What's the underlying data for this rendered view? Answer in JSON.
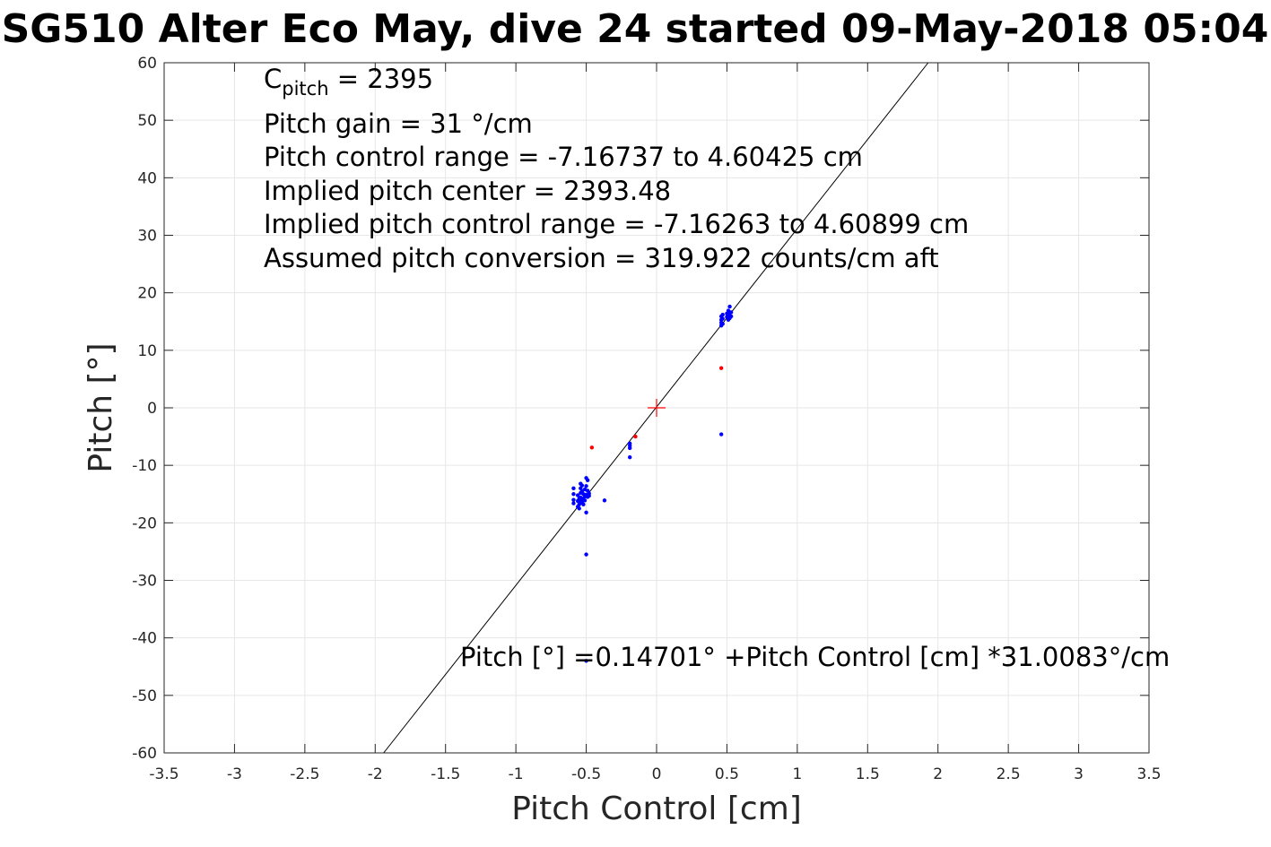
{
  "chart_data": {
    "type": "scatter",
    "title": "SG510 Alter Eco May, dive 24 started 09-May-2018 05:04",
    "xlabel": "Pitch Control [cm]",
    "ylabel": "Pitch [°]",
    "xlim": [
      -3.5,
      3.5
    ],
    "ylim": [
      -60,
      60
    ],
    "xticks": [
      -3.5,
      -3,
      -2.5,
      -2,
      -1.5,
      -1,
      -0.5,
      0,
      0.5,
      1,
      1.5,
      2,
      2.5,
      3,
      3.5
    ],
    "xtick_labels": [
      "-3.5",
      "-3",
      "-2.5",
      "-2",
      "-1.5",
      "-1",
      "-0.5",
      "0",
      "0.5",
      "1",
      "1.5",
      "2",
      "2.5",
      "3",
      "3.5"
    ],
    "yticks": [
      -60,
      -50,
      -40,
      -30,
      -20,
      -10,
      0,
      10,
      20,
      30,
      40,
      50,
      60
    ],
    "ytick_labels": [
      "-60",
      "-50",
      "-40",
      "-30",
      "-20",
      "-10",
      "0",
      "10",
      "20",
      "30",
      "40",
      "50",
      "60"
    ],
    "grid": true,
    "annotations": {
      "cpitch_base": "C",
      "cpitch_sub": "pitch",
      "cpitch_value": " = 2395",
      "lines": [
        "Pitch gain = 31 °/cm",
        "Pitch control range = -7.16737 to 4.60425 cm",
        "Implied pitch center = 2393.48",
        "Implied pitch control range = -7.16263 to 4.60899 cm",
        "Assumed pitch conversion = 319.922 counts/cm aft"
      ],
      "fit_equation": "Pitch [°] =0.14701° +Pitch Control [cm] *31.0083°/cm"
    },
    "fit_line": {
      "intercept": 0.14701,
      "slope": 31.0083,
      "color": "#000000"
    },
    "center_marker": {
      "x": 0,
      "y": 0,
      "color": "#ff0000",
      "shape": "plus"
    },
    "series": [
      {
        "color": "#0000ff",
        "points": [
          [
            -0.59,
            -14
          ],
          [
            -0.59,
            -15
          ],
          [
            -0.59,
            -16
          ],
          [
            -0.59,
            -16.6
          ],
          [
            -0.56,
            -15.2
          ],
          [
            -0.56,
            -16.2
          ],
          [
            -0.56,
            -17.2
          ],
          [
            -0.55,
            -15.8
          ],
          [
            -0.55,
            -16.8
          ],
          [
            -0.55,
            -17.5
          ],
          [
            -0.54,
            -13.2
          ],
          [
            -0.54,
            -14
          ],
          [
            -0.54,
            -14.8
          ],
          [
            -0.54,
            -15.6
          ],
          [
            -0.54,
            -16.3
          ],
          [
            -0.53,
            -13.5
          ],
          [
            -0.53,
            -14.5
          ],
          [
            -0.53,
            -15.8
          ],
          [
            -0.53,
            -16.5
          ],
          [
            -0.52,
            -15
          ],
          [
            -0.52,
            -16
          ],
          [
            -0.52,
            -16.8
          ],
          [
            -0.51,
            -14.2
          ],
          [
            -0.51,
            -15.4
          ],
          [
            -0.51,
            -16.1
          ],
          [
            -0.5,
            -12.2
          ],
          [
            -0.5,
            -13.6
          ],
          [
            -0.5,
            -15.1
          ],
          [
            -0.5,
            -18.2
          ],
          [
            -0.49,
            -12.6
          ],
          [
            -0.49,
            -14.4
          ],
          [
            -0.49,
            -15.5
          ],
          [
            -0.48,
            -14.9
          ],
          [
            -0.48,
            -15.3
          ],
          [
            -0.5,
            -25.5
          ],
          [
            -0.5,
            -44
          ],
          [
            -0.37,
            -16.1
          ],
          [
            -0.19,
            -6.2
          ],
          [
            -0.19,
            -6.6
          ],
          [
            -0.19,
            -7
          ],
          [
            -0.19,
            -8.6
          ],
          [
            0.46,
            14.3
          ],
          [
            0.46,
            14.8
          ],
          [
            0.46,
            15.3
          ],
          [
            0.46,
            15.9
          ],
          [
            0.47,
            14.6
          ],
          [
            0.47,
            15.5
          ],
          [
            0.47,
            16.2
          ],
          [
            0.5,
            15.8
          ],
          [
            0.5,
            16.4
          ],
          [
            0.51,
            15.3
          ],
          [
            0.51,
            16.2
          ],
          [
            0.51,
            16.9
          ],
          [
            0.52,
            15.6
          ],
          [
            0.52,
            16.5
          ],
          [
            0.52,
            17.6
          ],
          [
            0.53,
            15.9
          ],
          [
            0.53,
            16.6
          ],
          [
            0.46,
            -4.6
          ]
        ]
      },
      {
        "color": "#ff0000",
        "points": [
          [
            -0.46,
            -6.9
          ],
          [
            -0.15,
            -5.0
          ],
          [
            0.46,
            6.9
          ]
        ]
      }
    ]
  }
}
